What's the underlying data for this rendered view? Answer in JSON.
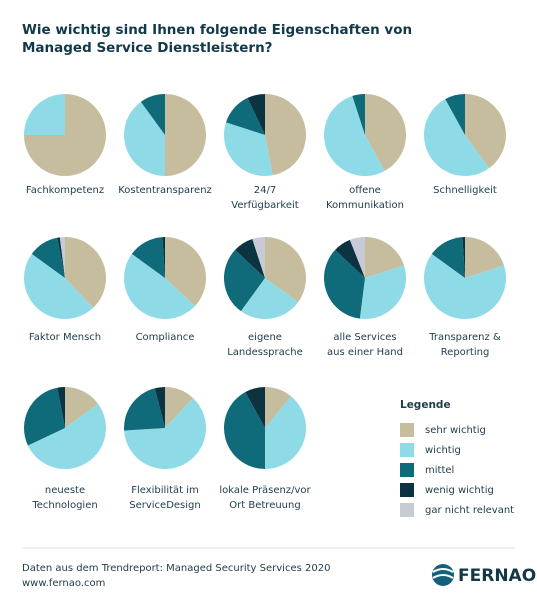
{
  "title": [
    "Wie wichtig sind Ihnen folgende Eigenschaften von",
    "Managed Service Dienstleistern?"
  ],
  "legend": {
    "title": "Legende",
    "categories": [
      "sehr wichtig",
      "wichtig",
      "mittel",
      "wenig wichtig",
      "gar nicht relevant"
    ],
    "colors": [
      "#c5bd9e",
      "#8edbe7",
      "#0f6a7a",
      "#0c3342",
      "#c8cbd6"
    ]
  },
  "chart_data": [
    {
      "type": "pie",
      "label": [
        "Fachkompetenz"
      ],
      "values": [
        75,
        25,
        0,
        0,
        0
      ]
    },
    {
      "type": "pie",
      "label": [
        "Kostentransparenz"
      ],
      "values": [
        50,
        40,
        10,
        0,
        0
      ]
    },
    {
      "type": "pie",
      "label": [
        "24/7",
        "Verfügbarkeit"
      ],
      "values": [
        47,
        33,
        13,
        7,
        0
      ]
    },
    {
      "type": "pie",
      "label": [
        "offene",
        "Kommunikation"
      ],
      "values": [
        42,
        53,
        5,
        0,
        0
      ]
    },
    {
      "type": "pie",
      "label": [
        "Schnelligkeit"
      ],
      "values": [
        40,
        52,
        8,
        0,
        0
      ]
    },
    {
      "type": "pie",
      "label": [
        "Faktor Mensch"
      ],
      "values": [
        38,
        47,
        12,
        1,
        2
      ]
    },
    {
      "type": "pie",
      "label": [
        "Compliance"
      ],
      "values": [
        37,
        48,
        14,
        1,
        0
      ]
    },
    {
      "type": "pie",
      "label": [
        "eigene",
        "Landessprache"
      ],
      "values": [
        35,
        25,
        27,
        8,
        5
      ]
    },
    {
      "type": "pie",
      "label": [
        "alle Services",
        "aus einer Hand"
      ],
      "values": [
        20,
        32,
        35,
        7,
        6
      ]
    },
    {
      "type": "pie",
      "label": [
        "Transparenz &",
        "Reporting"
      ],
      "values": [
        20,
        65,
        14,
        1,
        0
      ]
    },
    {
      "type": "pie",
      "label": [
        "neueste",
        "Technologien"
      ],
      "values": [
        15,
        53,
        29,
        3,
        0
      ]
    },
    {
      "type": "pie",
      "label": [
        "Flexibilität im",
        "ServiceDesign"
      ],
      "values": [
        12,
        62,
        22,
        4,
        0
      ]
    },
    {
      "type": "pie",
      "label": [
        "lokale Präsenz/vor",
        "Ort Betreuung"
      ],
      "values": [
        11,
        39,
        42,
        8,
        0
      ]
    }
  ],
  "footer": [
    "Daten aus dem Trendreport: Managed Security Services 2020",
    "www.fernao.com"
  ],
  "logo": "FERNAO"
}
